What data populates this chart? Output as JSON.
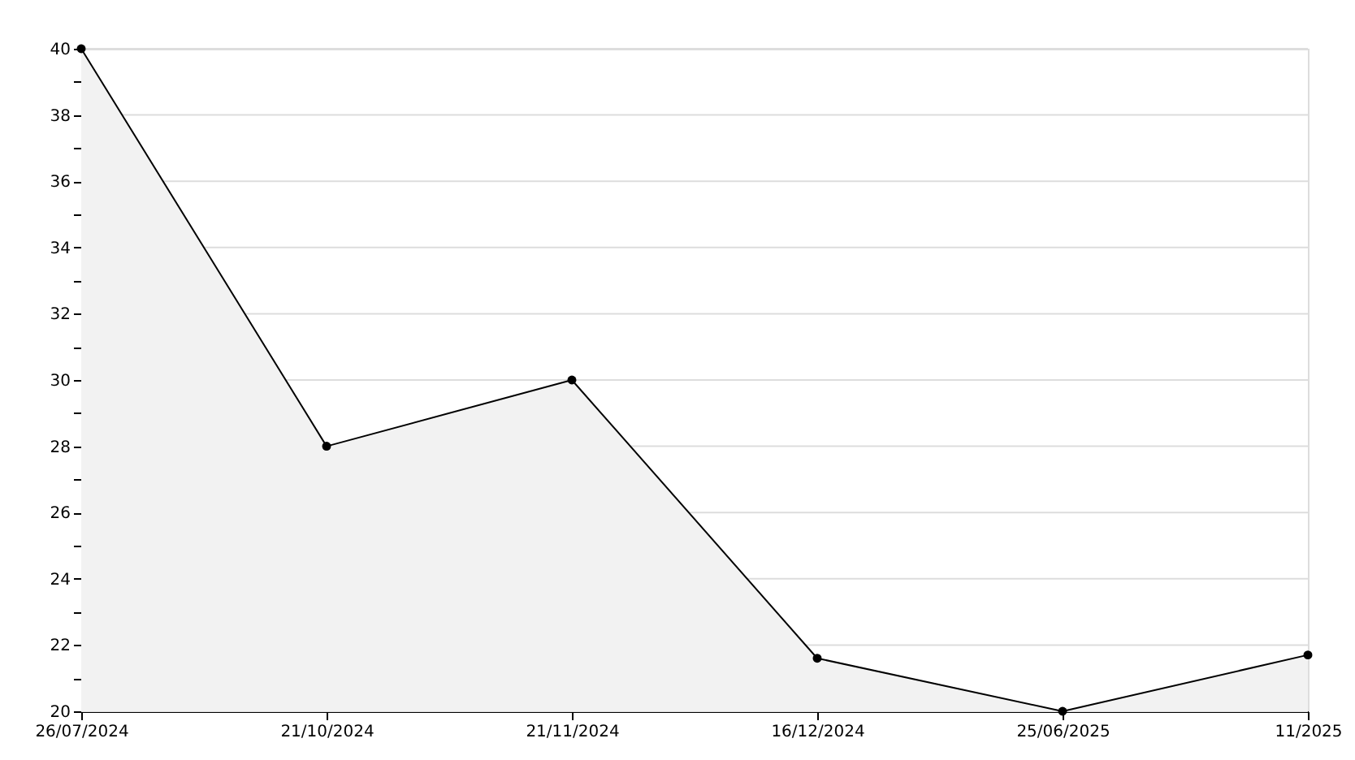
{
  "chart_data": {
    "type": "area",
    "categories": [
      "26/07/2024",
      "21/10/2024",
      "21/11/2024",
      "16/12/2024",
      "25/06/2025",
      "11/2025"
    ],
    "series": [
      {
        "color": "#000000",
        "values": [
          40,
          28,
          30,
          21.6,
          20,
          21.7
        ]
      }
    ],
    "ylim": [
      20,
      40
    ],
    "yticks": [
      20,
      {
        "value": 21,
        "label": null
      },
      22,
      {
        "value": 23,
        "label": null
      },
      24,
      {
        "value": 25,
        "label": null
      },
      26,
      {
        "value": 27,
        "label": null
      },
      28,
      {
        "value": 29,
        "label": null
      },
      30,
      {
        "value": 31,
        "label": null
      },
      32,
      {
        "value": 33,
        "label": null
      },
      34,
      {
        "value": 35,
        "label": null
      },
      36,
      {
        "value": 37,
        "label": null
      },
      38,
      {
        "value": 39,
        "label": null
      },
      40
    ],
    "grid": "y",
    "marker": "circle",
    "line_style": "solid"
  }
}
